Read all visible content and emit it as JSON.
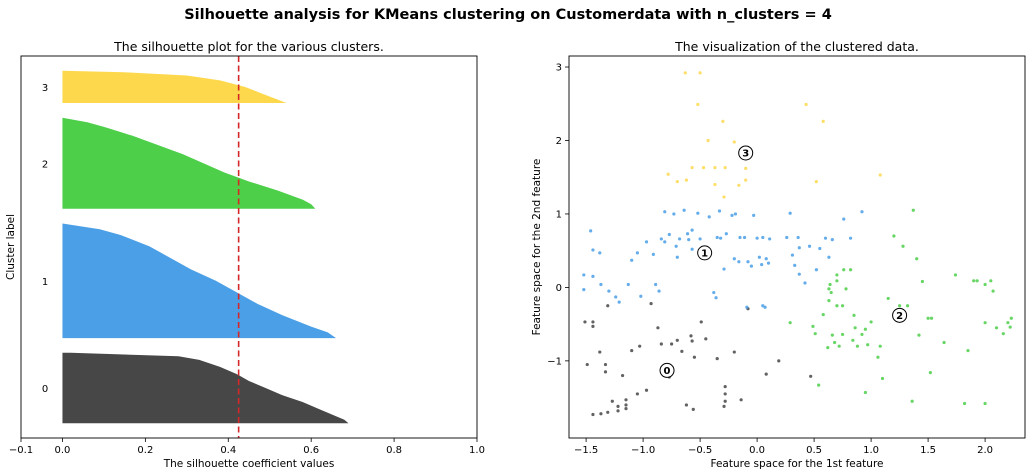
{
  "suptitle": "Silhouette analysis for KMeans clustering on Customerdata with n_clusters = 4",
  "chart_data": [
    {
      "type": "area",
      "title": "The silhouette plot for the various clusters.",
      "xlabel": "The silhouette coefficient values",
      "ylabel": "Cluster label",
      "xlim": [
        -0.1,
        1.0
      ],
      "xticks": [
        -0.1,
        0.0,
        0.2,
        0.4,
        0.6,
        0.8,
        1.0
      ],
      "xtick_labels": [
        "−0.1",
        "0.0",
        "0.2",
        "0.4",
        "0.6",
        "0.8",
        "1.0"
      ],
      "average_silhouette_score": 0.425,
      "grid": false,
      "series": [
        {
          "label": "0",
          "color": "#474747",
          "samples": 48,
          "profile": [
            [
              0,
              0.69
            ],
            [
              0.05,
              0.68
            ],
            [
              0.1,
              0.66
            ],
            [
              0.2,
              0.62
            ],
            [
              0.3,
              0.58
            ],
            [
              0.4,
              0.53
            ],
            [
              0.5,
              0.49
            ],
            [
              0.6,
              0.45
            ],
            [
              0.7,
              0.42
            ],
            [
              0.8,
              0.38
            ],
            [
              0.9,
              0.33
            ],
            [
              0.95,
              0.28
            ],
            [
              1,
              0.02
            ]
          ]
        },
        {
          "label": "1",
          "color": "#4a9fe6",
          "samples": 78,
          "profile": [
            [
              0,
              0.66
            ],
            [
              0.05,
              0.64
            ],
            [
              0.1,
              0.6
            ],
            [
              0.2,
              0.53
            ],
            [
              0.3,
              0.47
            ],
            [
              0.4,
              0.42
            ],
            [
              0.5,
              0.37
            ],
            [
              0.6,
              0.31
            ],
            [
              0.7,
              0.26
            ],
            [
              0.8,
              0.21
            ],
            [
              0.9,
              0.14
            ],
            [
              0.95,
              0.09
            ],
            [
              1,
              0.0
            ]
          ]
        },
        {
          "label": "2",
          "color": "#4dcf4a",
          "samples": 62,
          "profile": [
            [
              0,
              0.61
            ],
            [
              0.05,
              0.6
            ],
            [
              0.1,
              0.58
            ],
            [
              0.2,
              0.52
            ],
            [
              0.3,
              0.45
            ],
            [
              0.4,
              0.39
            ],
            [
              0.5,
              0.34
            ],
            [
              0.6,
              0.29
            ],
            [
              0.7,
              0.23
            ],
            [
              0.8,
              0.17
            ],
            [
              0.9,
              0.1
            ],
            [
              0.95,
              0.06
            ],
            [
              1,
              0.0
            ]
          ]
        },
        {
          "label": "3",
          "color": "#fdd84d",
          "samples": 22,
          "profile": [
            [
              0,
              0.54
            ],
            [
              0.1,
              0.52
            ],
            [
              0.3,
              0.48
            ],
            [
              0.5,
              0.44
            ],
            [
              0.7,
              0.38
            ],
            [
              0.85,
              0.3
            ],
            [
              0.95,
              0.15
            ],
            [
              1,
              0.0
            ]
          ]
        }
      ]
    },
    {
      "type": "scatter",
      "title": "The visualization of the clustered data.",
      "xlabel": "Feature space for the 1st feature",
      "ylabel": "Feature space for the 2nd feature",
      "xlim": [
        -1.65,
        2.35
      ],
      "ylim": [
        -2.05,
        3.15
      ],
      "xticks": [
        -1.5,
        -1.0,
        -0.5,
        0.0,
        0.5,
        1.0,
        1.5,
        2.0
      ],
      "xtick_labels": [
        "−1.5",
        "−1.0",
        "−0.5",
        "0.0",
        "0.5",
        "1.0",
        "1.5",
        "2.0"
      ],
      "yticks": [
        -1,
        0,
        1,
        2,
        3
      ],
      "ytick_labels": [
        "−1",
        "0",
        "1",
        "2",
        "3"
      ],
      "grid": false,
      "colors": [
        "#474747",
        "#4a9fe6",
        "#4dcf4a",
        "#fdd84d"
      ],
      "centers": [
        {
          "label": "0",
          "x": -0.79,
          "y": -1.13
        },
        {
          "label": "1",
          "x": -0.46,
          "y": 0.47
        },
        {
          "label": "2",
          "x": 1.25,
          "y": -0.38
        },
        {
          "label": "3",
          "x": -0.1,
          "y": 1.83
        }
      ],
      "points": [
        [
          [
            -1.51,
            -0.47
          ],
          [
            -1.44,
            -0.47
          ],
          [
            -1.44,
            -0.53
          ],
          [
            -1.38,
            -0.88
          ],
          [
            -1.33,
            -1.05
          ],
          [
            -1.33,
            -1.15
          ],
          [
            -1.31,
            -0.25
          ],
          [
            -1.49,
            -1.05
          ],
          [
            -1.44,
            -1.73
          ],
          [
            -1.37,
            -1.72
          ],
          [
            -1.31,
            -1.7
          ],
          [
            -1.27,
            -1.55
          ],
          [
            -1.22,
            -1.62
          ],
          [
            -1.22,
            -1.68
          ],
          [
            -1.15,
            -1.6
          ],
          [
            -1.15,
            -1.65
          ],
          [
            -1.18,
            -1.2
          ],
          [
            -1.15,
            -1.53
          ],
          [
            -1.05,
            -1.45
          ],
          [
            -1.1,
            -0.86
          ],
          [
            -1.03,
            -0.8
          ],
          [
            -0.97,
            -1.4
          ],
          [
            -0.93,
            -0.22
          ],
          [
            -0.87,
            -0.55
          ],
          [
            -0.84,
            -0.77
          ],
          [
            -0.75,
            -0.77
          ],
          [
            -0.79,
            -1.05
          ],
          [
            -0.77,
            -1.22
          ],
          [
            -0.7,
            -0.72
          ],
          [
            -0.66,
            -0.87
          ],
          [
            -0.62,
            -1.6
          ],
          [
            -0.56,
            -1.66
          ],
          [
            -0.58,
            -0.66
          ],
          [
            -0.57,
            -0.73
          ],
          [
            -0.55,
            -0.95
          ],
          [
            -0.49,
            -0.47
          ],
          [
            -0.45,
            -0.7
          ],
          [
            -0.35,
            -0.97
          ],
          [
            -0.28,
            -1.35
          ],
          [
            -0.28,
            -1.45
          ],
          [
            -0.28,
            -1.55
          ],
          [
            -0.29,
            -1.62
          ],
          [
            -0.2,
            -0.88
          ],
          [
            -0.14,
            -1.53
          ],
          [
            -0.08,
            -0.29
          ],
          [
            0.08,
            -1.18
          ],
          [
            0.19,
            -1.0
          ],
          [
            0.47,
            -1.21
          ]
        ],
        [
          [
            -1.52,
            0.17
          ],
          [
            -1.52,
            -0.03
          ],
          [
            -1.46,
            0.77
          ],
          [
            -1.44,
            0.51
          ],
          [
            -1.44,
            0.15
          ],
          [
            -1.38,
            0.47
          ],
          [
            -1.37,
            0.04
          ],
          [
            -1.3,
            -0.05
          ],
          [
            -1.24,
            -0.13
          ],
          [
            -1.21,
            -0.2
          ],
          [
            -1.13,
            0.04
          ],
          [
            -1.1,
            0.37
          ],
          [
            -1.05,
            0.47
          ],
          [
            -1.02,
            -0.12
          ],
          [
            -0.97,
            0.62
          ],
          [
            -0.91,
            0.45
          ],
          [
            -0.89,
            0.04
          ],
          [
            -0.86,
            -0.05
          ],
          [
            -0.84,
            0.66
          ],
          [
            -0.81,
            0.62
          ],
          [
            -0.81,
            1.03
          ],
          [
            -0.77,
            0.72
          ],
          [
            -0.73,
            1.0
          ],
          [
            -0.7,
            0.41
          ],
          [
            -0.68,
            0.66
          ],
          [
            -0.64,
            1.05
          ],
          [
            -0.61,
            0.73
          ],
          [
            -0.6,
            0.65
          ],
          [
            -0.57,
            0.78
          ],
          [
            -0.57,
            0.52
          ],
          [
            -0.52,
            1.01
          ],
          [
            -0.5,
            0.66
          ],
          [
            -0.47,
            0.47
          ],
          [
            -0.42,
            0.96
          ],
          [
            -0.38,
            -0.07
          ],
          [
            -0.35,
            0.68
          ],
          [
            -0.32,
            0.67
          ],
          [
            -0.33,
            1.04
          ],
          [
            -0.29,
            0.25
          ],
          [
            -0.22,
            0.98
          ],
          [
            -0.19,
            1.0
          ],
          [
            -0.2,
            0.39
          ],
          [
            -0.15,
            0.68
          ],
          [
            -0.11,
            0.68
          ],
          [
            -0.08,
            0.35
          ],
          [
            -0.05,
            0.29
          ],
          [
            -0.09,
            -0.27
          ],
          [
            -0.03,
            0.98
          ],
          [
            0.0,
            0.67
          ],
          [
            0.02,
            0.41
          ],
          [
            0.04,
            0.31
          ],
          [
            0.08,
            0.39
          ],
          [
            0.1,
            0.33
          ],
          [
            0.05,
            0.68
          ],
          [
            0.26,
            0.68
          ],
          [
            0.29,
            1.01
          ],
          [
            0.31,
            0.44
          ],
          [
            0.36,
            0.68
          ],
          [
            0.42,
            0.06
          ],
          [
            0.52,
            0.24
          ],
          [
            0.55,
            0.53
          ],
          [
            0.6,
            0.67
          ],
          [
            0.66,
            0.65
          ],
          [
            0.76,
            0.93
          ],
          [
            0.82,
            0.67
          ],
          [
            0.92,
            1.03
          ],
          [
            0.46,
            0.56
          ],
          [
            0.63,
            0.41
          ],
          [
            0.05,
            -0.25
          ],
          [
            0.07,
            -0.27
          ],
          [
            0.37,
            0.18
          ],
          [
            0.33,
            0.3
          ],
          [
            -0.36,
            -0.14
          ],
          [
            -0.27,
            0.73
          ],
          [
            -0.16,
            0.35
          ],
          [
            0.37,
            0.54
          ],
          [
            -0.71,
            0.56
          ],
          [
            0.11,
            0.66
          ]
        ],
        [
          [
            0.29,
            -0.48
          ],
          [
            0.49,
            -0.53
          ],
          [
            0.51,
            -0.63
          ],
          [
            0.54,
            -1.33
          ],
          [
            0.63,
            -0.18
          ],
          [
            0.63,
            -0.02
          ],
          [
            0.64,
            0.04
          ],
          [
            0.66,
            -0.65
          ],
          [
            0.7,
            0.09
          ],
          [
            0.7,
            0.17
          ],
          [
            0.7,
            -0.25
          ],
          [
            0.76,
            0.24
          ],
          [
            0.75,
            -0.25
          ],
          [
            0.82,
            0.24
          ],
          [
            0.84,
            -0.72
          ],
          [
            0.86,
            -0.55
          ],
          [
            0.88,
            -0.8
          ],
          [
            0.92,
            -0.64
          ],
          [
            0.95,
            -1.43
          ],
          [
            0.97,
            -0.78
          ],
          [
            1.0,
            -0.47
          ],
          [
            1.06,
            -0.95
          ],
          [
            1.1,
            -1.24
          ],
          [
            1.15,
            -0.15
          ],
          [
            1.2,
            0.7
          ],
          [
            1.25,
            -0.25
          ],
          [
            1.28,
            0.56
          ],
          [
            1.32,
            -0.25
          ],
          [
            1.36,
            -1.55
          ],
          [
            1.37,
            1.05
          ],
          [
            1.4,
            0.39
          ],
          [
            1.42,
            -0.65
          ],
          [
            1.45,
            0.08
          ],
          [
            1.5,
            -0.42
          ],
          [
            1.52,
            -1.16
          ],
          [
            1.64,
            -0.75
          ],
          [
            1.74,
            0.17
          ],
          [
            1.82,
            -1.58
          ],
          [
            1.85,
            -0.86
          ],
          [
            1.9,
            0.09
          ],
          [
            1.93,
            0.09
          ],
          [
            2.0,
            -0.48
          ],
          [
            2.0,
            -1.58
          ],
          [
            2.05,
            0.09
          ],
          [
            2.07,
            -0.05
          ],
          [
            2.1,
            -0.55
          ],
          [
            2.16,
            -0.63
          ],
          [
            2.2,
            -0.48
          ],
          [
            2.23,
            -0.42
          ],
          [
            2.22,
            -0.54
          ],
          [
            0.72,
            -0.8
          ],
          [
            0.68,
            -0.75
          ],
          [
            0.58,
            -0.37
          ],
          [
            0.78,
            -0.02
          ],
          [
            0.85,
            -0.38
          ],
          [
            0.95,
            -0.57
          ],
          [
            0.65,
            -0.07
          ],
          [
            1.53,
            -0.42
          ],
          [
            1.08,
            -0.8
          ],
          [
            0.75,
            -0.64
          ],
          [
            0.62,
            -0.82
          ],
          [
            2.0,
            0.04
          ]
        ],
        [
          [
            -0.63,
            2.92
          ],
          [
            -0.5,
            2.92
          ],
          [
            -0.52,
            2.49
          ],
          [
            -0.3,
            2.26
          ],
          [
            -0.43,
            2.0
          ],
          [
            -0.2,
            1.98
          ],
          [
            -0.78,
            1.54
          ],
          [
            -0.7,
            1.44
          ],
          [
            -0.62,
            1.46
          ],
          [
            -0.57,
            1.63
          ],
          [
            -0.47,
            1.63
          ],
          [
            -0.37,
            1.63
          ],
          [
            -0.28,
            1.63
          ],
          [
            -0.16,
            1.39
          ],
          [
            -0.1,
            1.62
          ],
          [
            -0.1,
            1.46
          ],
          [
            -0.37,
            1.4
          ],
          [
            -0.29,
            1.23
          ],
          [
            0.43,
            2.49
          ],
          [
            0.58,
            2.26
          ],
          [
            0.52,
            1.44
          ],
          [
            1.08,
            1.53
          ]
        ]
      ]
    }
  ]
}
